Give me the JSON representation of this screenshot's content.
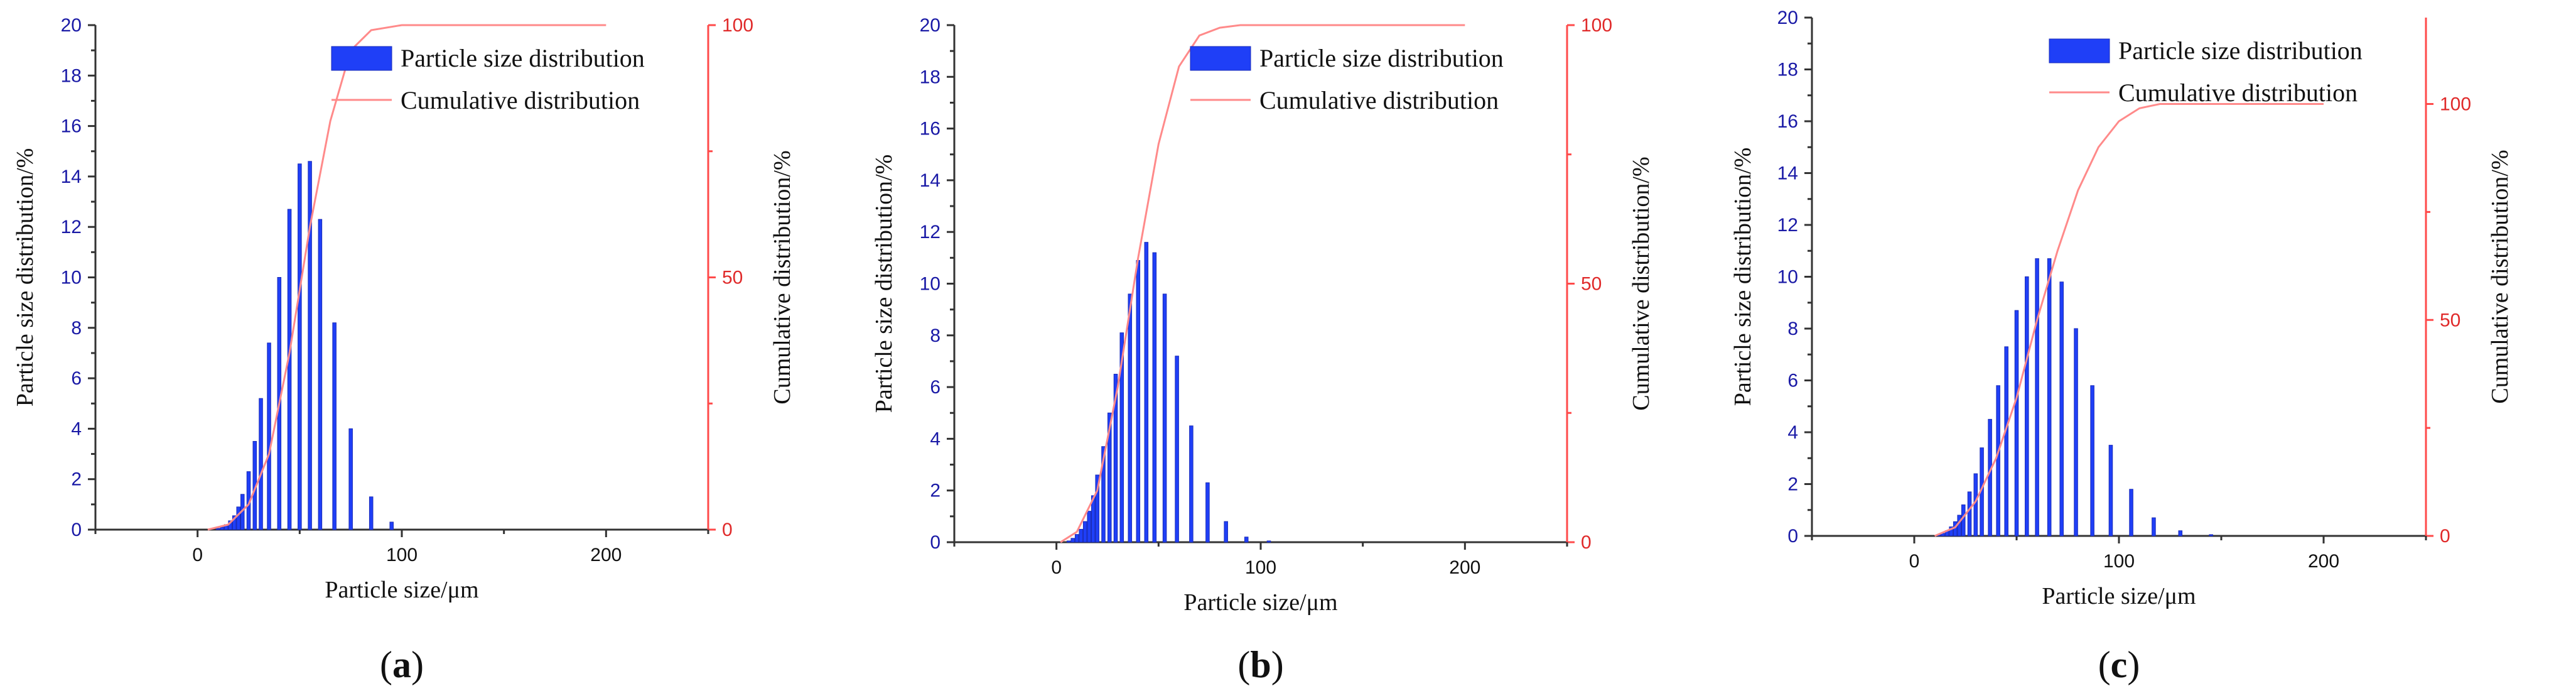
{
  "chart_data": [
    {
      "type": "bar",
      "panel_label": "a",
      "title": "",
      "xlabel": "Particle size/μm",
      "ylabel": "Particle size distribution/%",
      "y2label": "Cumulative distribution/%",
      "xlim": [
        -50,
        250
      ],
      "ylim": [
        0,
        20
      ],
      "y2lim": [
        0,
        100
      ],
      "x_ticks": [
        0,
        100,
        200
      ],
      "y_ticks": [
        0,
        2,
        4,
        6,
        8,
        10,
        12,
        14,
        16,
        18,
        20
      ],
      "y2_ticks": [
        0,
        50,
        100
      ],
      "legend": [
        "Particle size distribution",
        "Cumulative distribution"
      ],
      "series": [
        {
          "name": "Particle size distribution",
          "x": [
            10,
            12,
            14,
            16,
            18,
            20,
            22,
            25,
            28,
            31,
            35,
            40,
            45,
            50,
            55,
            60,
            67,
            75,
            85,
            95,
            105
          ],
          "values": [
            0.05,
            0.1,
            0.2,
            0.35,
            0.55,
            0.9,
            1.4,
            2.3,
            3.5,
            5.2,
            7.4,
            10.0,
            12.7,
            14.5,
            14.6,
            12.3,
            8.2,
            4.0,
            1.3,
            0.3,
            0.0
          ]
        },
        {
          "name": "Cumulative distribution",
          "axis": "right",
          "x": [
            5,
            15,
            25,
            35,
            45,
            55,
            65,
            75,
            85,
            100,
            200
          ],
          "values": [
            0,
            1,
            5,
            15,
            35,
            60,
            81,
            95,
            99,
            100,
            100
          ]
        }
      ]
    },
    {
      "type": "bar",
      "panel_label": "b",
      "title": "",
      "xlabel": "Particle size/μm",
      "ylabel": "Particle size distribution/%",
      "y2label": "Cumulative distribution/%",
      "xlim": [
        -50,
        250
      ],
      "ylim": [
        0,
        20
      ],
      "y2lim": [
        0,
        100
      ],
      "x_ticks": [
        0,
        100,
        200
      ],
      "y_ticks": [
        0,
        2,
        4,
        6,
        8,
        10,
        12,
        14,
        16,
        18,
        20
      ],
      "y2_ticks": [
        0,
        50,
        100
      ],
      "legend": [
        "Particle size distribution",
        "Cumulative distribution"
      ],
      "series": [
        {
          "name": "Particle size distribution",
          "x": [
            6,
            8,
            10,
            12,
            14,
            16,
            18,
            20,
            23,
            26,
            29,
            32,
            36,
            40,
            44,
            48,
            53,
            59,
            66,
            74,
            83,
            93,
            104
          ],
          "values": [
            0.05,
            0.15,
            0.3,
            0.5,
            0.8,
            1.2,
            1.8,
            2.6,
            3.7,
            5.0,
            6.5,
            8.1,
            9.6,
            10.9,
            11.6,
            11.2,
            9.6,
            7.2,
            4.5,
            2.3,
            0.8,
            0.2,
            0.05
          ]
        },
        {
          "name": "Cumulative distribution",
          "axis": "right",
          "x": [
            2,
            10,
            20,
            30,
            40,
            50,
            60,
            70,
            80,
            90,
            200
          ],
          "values": [
            0,
            2,
            10,
            30,
            55,
            77,
            92,
            98,
            99.5,
            100,
            100
          ]
        }
      ]
    },
    {
      "type": "bar",
      "panel_label": "c",
      "title": "",
      "xlabel": "Particle size/μm",
      "ylabel": "Particle size distribution/%",
      "y2label": "Cumulative distribution/%",
      "xlim": [
        -50,
        250
      ],
      "ylim": [
        0,
        20
      ],
      "y2lim": [
        0,
        120
      ],
      "x_ticks": [
        0,
        100,
        200
      ],
      "y_ticks": [
        0,
        2,
        4,
        6,
        8,
        10,
        12,
        14,
        16,
        18,
        20
      ],
      "y2_ticks": [
        0,
        50,
        100
      ],
      "legend": [
        "Particle size distribution",
        "Cumulative distribution"
      ],
      "series": [
        {
          "name": "Particle size distribution",
          "x": [
            12,
            14,
            16,
            18,
            20,
            22,
            24,
            27,
            30,
            33,
            37,
            41,
            45,
            50,
            55,
            60,
            66,
            72,
            79,
            87,
            96,
            106,
            117,
            130,
            145
          ],
          "values": [
            0.05,
            0.1,
            0.2,
            0.35,
            0.55,
            0.8,
            1.2,
            1.7,
            2.4,
            3.4,
            4.5,
            5.8,
            7.3,
            8.7,
            10.0,
            10.7,
            10.7,
            9.8,
            8.0,
            5.8,
            3.5,
            1.8,
            0.7,
            0.2,
            0.05
          ]
        },
        {
          "name": "Cumulative distribution",
          "axis": "right",
          "x": [
            10,
            20,
            30,
            40,
            50,
            60,
            70,
            80,
            90,
            100,
            110,
            120,
            200
          ],
          "values": [
            0,
            2,
            8,
            18,
            32,
            50,
            66,
            80,
            90,
            96,
            99,
            100,
            100
          ]
        }
      ]
    }
  ]
}
